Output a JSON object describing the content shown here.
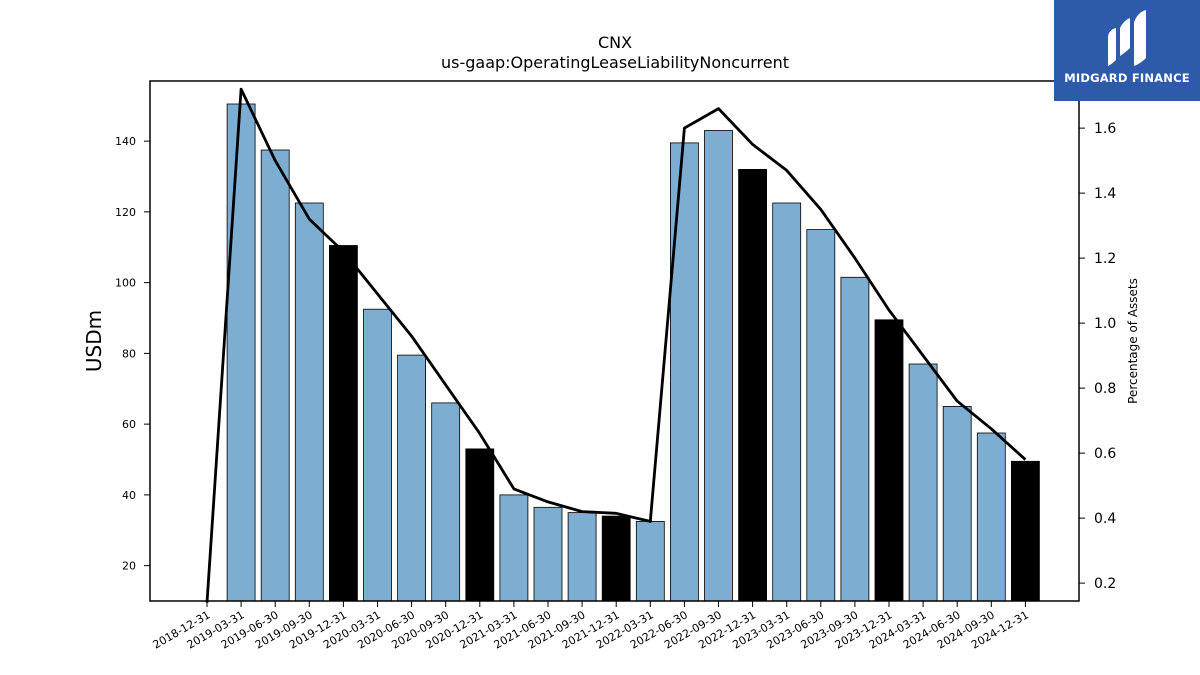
{
  "chart_data": {
    "type": "bar",
    "title": "CNX",
    "subtitle": "us-gaap:OperatingLeaseLiabilityNoncurrent",
    "ylabel": "USDm",
    "y2label": "Percentage of Assets",
    "ylim": [
      10,
      157
    ],
    "y2lim": [
      0.145,
      1.745
    ],
    "yticks": [
      20,
      40,
      60,
      80,
      100,
      120,
      140
    ],
    "y2ticks": [
      0.2,
      0.4,
      0.6,
      0.8,
      1.0,
      1.2,
      1.4,
      1.6
    ],
    "categories": [
      "2018-12-31",
      "2019-03-31",
      "2019-06-30",
      "2019-09-30",
      "2019-12-31",
      "2020-03-31",
      "2020-06-30",
      "2020-09-30",
      "2020-12-31",
      "2021-03-31",
      "2021-06-30",
      "2021-09-30",
      "2021-12-31",
      "2022-03-31",
      "2022-06-30",
      "2022-09-30",
      "2022-12-31",
      "2023-03-31",
      "2023-06-30",
      "2023-09-30",
      "2023-12-31",
      "2024-03-31",
      "2024-06-30",
      "2024-09-30",
      "2024-12-31"
    ],
    "series": [
      {
        "kind": "bar",
        "values": [
          null,
          150.5,
          137.5,
          122.5,
          110.5,
          92.5,
          79.5,
          66.0,
          53.0,
          40.0,
          36.5,
          35.0,
          34.0,
          32.5,
          139.5,
          143.0,
          132.0,
          122.5,
          115.0,
          101.5,
          89.5,
          77.0,
          65.0,
          57.5,
          49.5
        ],
        "highlight": [
          false,
          false,
          false,
          false,
          true,
          false,
          false,
          false,
          true,
          false,
          false,
          false,
          true,
          false,
          false,
          false,
          true,
          false,
          false,
          false,
          true,
          false,
          false,
          false,
          true
        ]
      },
      {
        "kind": "line",
        "axis": "right",
        "values": [
          0.14,
          1.72,
          1.5,
          1.32,
          1.22,
          1.09,
          0.96,
          0.81,
          0.66,
          0.49,
          0.45,
          0.42,
          0.415,
          0.39,
          1.6,
          1.66,
          1.55,
          1.47,
          1.35,
          1.2,
          1.04,
          0.9,
          0.76,
          0.675,
          0.58
        ]
      }
    ],
    "colors": {
      "bar": "#7eadd2",
      "highlight": "#000000",
      "line": "#000000"
    },
    "grid": false
  },
  "logo": {
    "text": "MIDGARD FINANCE",
    "icon": "midgard-logo-icon"
  }
}
